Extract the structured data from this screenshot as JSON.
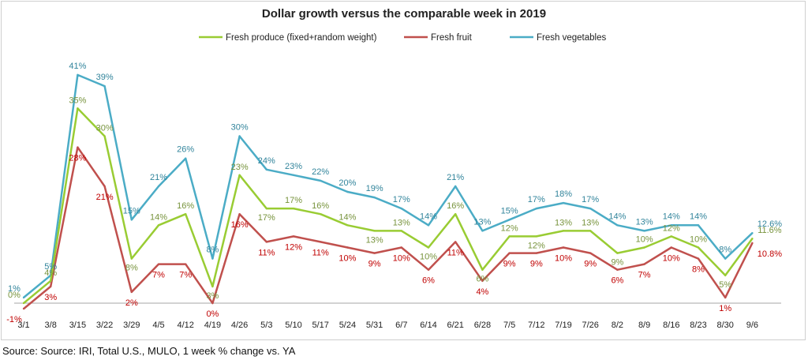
{
  "chart_data": {
    "type": "line",
    "title": "Dollar growth versus the comparable week in 2019",
    "source": "Source: Source: IRI, Total U.S., MULO, 1 week % change vs. YA",
    "xlabel": "",
    "ylabel": "",
    "ylim": [
      -3,
      44
    ],
    "grid": false,
    "legend_position": "top",
    "categories": [
      "3/1",
      "3/8",
      "3/15",
      "3/22",
      "3/29",
      "4/5",
      "4/12",
      "4/19",
      "4/26",
      "5/3",
      "5/10",
      "5/17",
      "5/24",
      "5/31",
      "6/7",
      "6/14",
      "6/21",
      "6/28",
      "7/5",
      "7/12",
      "7/19",
      "7/26",
      "8/2",
      "8/9",
      "8/16",
      "8/23",
      "8/30",
      "9/6"
    ],
    "series": [
      {
        "name": "Fresh produce (fixed+random weight)",
        "color": "#99cc33",
        "label_color": "#77933c",
        "values": [
          0,
          4,
          35,
          30,
          8,
          14,
          16,
          3,
          23,
          17,
          17,
          16,
          14,
          13,
          13,
          10,
          16,
          6,
          12,
          12,
          13,
          13,
          9,
          10,
          12,
          10,
          5,
          11.6
        ],
        "labels": [
          "0%",
          "4%",
          "35%",
          "30%",
          "8%",
          "14%",
          "16%",
          "3%",
          "23%",
          "17%",
          "17%",
          "16%",
          "14%",
          "13%",
          "13%",
          "10%",
          "16%",
          "6%",
          "12%",
          "12%",
          "13%",
          "13%",
          "9%",
          "10%",
          "12%",
          "10%",
          "5%",
          "11.6%"
        ]
      },
      {
        "name": "Fresh fruit",
        "color": "#c0504d",
        "label_color": "#c00000",
        "values": [
          -1,
          3,
          28,
          21,
          2,
          7,
          7,
          0,
          16,
          11,
          12,
          11,
          10,
          9,
          10,
          6,
          11,
          4,
          9,
          9,
          10,
          9,
          6,
          7,
          10,
          8,
          1,
          10.8
        ],
        "labels": [
          "-1%",
          "3%",
          "28%",
          "21%",
          "2%",
          "7%",
          "7%",
          "0%",
          "16%",
          "11%",
          "12%",
          "11%",
          "10%",
          "9%",
          "10%",
          "6%",
          "11%",
          "4%",
          "9%",
          "9%",
          "10%",
          "9%",
          "6%",
          "7%",
          "10%",
          "8%",
          "1%",
          "10.8%"
        ]
      },
      {
        "name": "Fresh vegetables",
        "color": "#4bacc6",
        "label_color": "#31849b",
        "values": [
          1,
          5,
          41,
          39,
          15,
          21,
          26,
          8,
          30,
          24,
          23,
          22,
          20,
          19,
          17,
          14,
          21,
          13,
          15,
          17,
          18,
          17,
          14,
          13,
          14,
          14,
          8,
          12.6
        ],
        "labels": [
          "1%",
          "5%",
          "41%",
          "39%",
          "15%",
          "21%",
          "26%",
          "8%",
          "30%",
          "24%",
          "23%",
          "22%",
          "20%",
          "19%",
          "17%",
          "14%",
          "21%",
          "13%",
          "15%",
          "17%",
          "18%",
          "17%",
          "14%",
          "13%",
          "14%",
          "14%",
          "8%",
          "12.6%"
        ]
      }
    ]
  }
}
